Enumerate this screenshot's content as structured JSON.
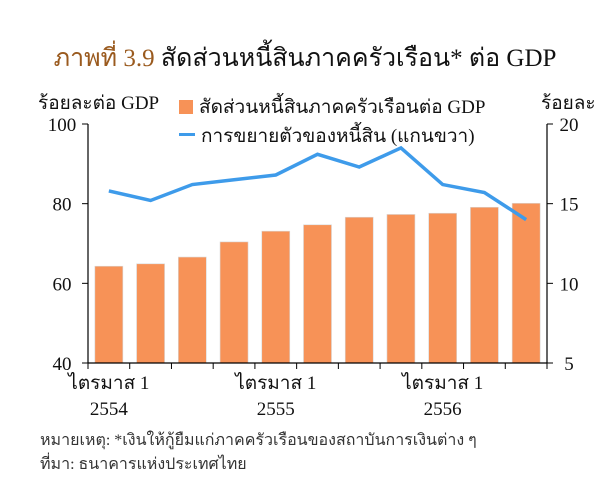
{
  "title": {
    "prefix": "ภาพที่ 3.9",
    "text": "สัดส่วนหนี้สินภาคครัวเรือน* ต่อ GDP"
  },
  "chart_data": {
    "type": "bar+line",
    "left_axis": {
      "label": "ร้อยละต่อ GDP",
      "ylim": [
        40,
        100
      ],
      "ticks": [
        40,
        60,
        80,
        100
      ]
    },
    "right_axis": {
      "label": "ร้อยละ",
      "ylim": [
        5,
        20
      ],
      "ticks": [
        5,
        10,
        15,
        20
      ]
    },
    "x_tick_labels": [
      {
        "index": 0,
        "line1": "ไตรมาส 1",
        "line2": "2554"
      },
      {
        "index": 4,
        "line1": "ไตรมาส 1",
        "line2": "2555"
      },
      {
        "index": 8,
        "line1": "ไตรมาส 1",
        "line2": "2556"
      }
    ],
    "series": [
      {
        "name": "สัดส่วนหนี้สินภาคครัวเรือนต่อ GDP",
        "type": "bar",
        "axis": "left",
        "color": "#F79257",
        "values": [
          64.3,
          64.9,
          66.6,
          70.4,
          73.1,
          74.7,
          76.6,
          77.3,
          77.6,
          79.1,
          80.1
        ]
      },
      {
        "name": "การขยายตัวของหนี้สิน (แกนขวา)",
        "type": "line",
        "axis": "right",
        "color": "#3E9BEA",
        "values": [
          15.8,
          15.2,
          16.2,
          16.5,
          16.8,
          18.1,
          17.3,
          18.5,
          16.2,
          15.7,
          14.0
        ]
      }
    ],
    "legend": "top-center",
    "grid": false
  },
  "footer": {
    "note": "หมายเหตุ: *เงินให้กู้ยืมแก่ภาคครัวเรือนของสถาบันการเงินต่าง ๆ",
    "source": "ที่มา: ธนาคารแห่งประเทศไทย"
  }
}
